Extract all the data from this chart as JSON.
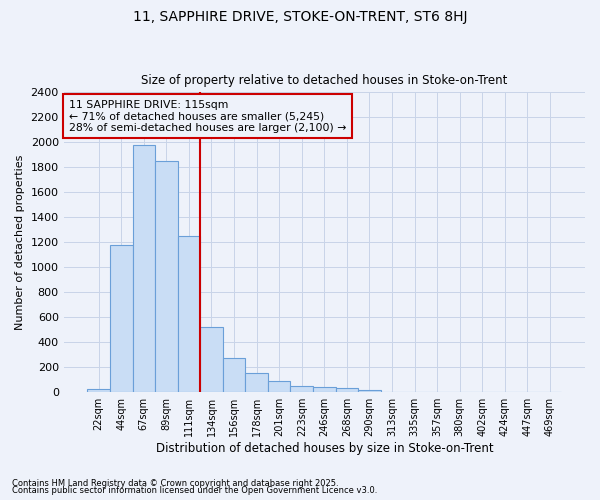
{
  "title1": "11, SAPPHIRE DRIVE, STOKE-ON-TRENT, ST6 8HJ",
  "title2": "Size of property relative to detached houses in Stoke-on-Trent",
  "xlabel": "Distribution of detached houses by size in Stoke-on-Trent",
  "ylabel": "Number of detached properties",
  "categories": [
    "22sqm",
    "44sqm",
    "67sqm",
    "89sqm",
    "111sqm",
    "134sqm",
    "156sqm",
    "178sqm",
    "201sqm",
    "223sqm",
    "246sqm",
    "268sqm",
    "290sqm",
    "313sqm",
    "335sqm",
    "357sqm",
    "380sqm",
    "402sqm",
    "424sqm",
    "447sqm",
    "469sqm"
  ],
  "values": [
    25,
    1175,
    1975,
    1850,
    1250,
    525,
    275,
    150,
    90,
    50,
    40,
    35,
    15,
    5,
    3,
    2,
    1,
    1,
    1,
    0,
    0
  ],
  "bar_color": "#c9ddf5",
  "bar_edge_color": "#6a9fd8",
  "grid_color": "#c8d4e8",
  "bg_color": "#eef2fa",
  "vline_x_index": 4,
  "vline_color": "#cc0000",
  "annotation_title": "11 SAPPHIRE DRIVE: 115sqm",
  "annotation_line1": "← 71% of detached houses are smaller (5,245)",
  "annotation_line2": "28% of semi-detached houses are larger (2,100) →",
  "annotation_box_color": "#cc0000",
  "footer1": "Contains HM Land Registry data © Crown copyright and database right 2025.",
  "footer2": "Contains public sector information licensed under the Open Government Licence v3.0.",
  "ylim": [
    0,
    2400
  ],
  "yticks": [
    0,
    200,
    400,
    600,
    800,
    1000,
    1200,
    1400,
    1600,
    1800,
    2000,
    2200,
    2400
  ]
}
